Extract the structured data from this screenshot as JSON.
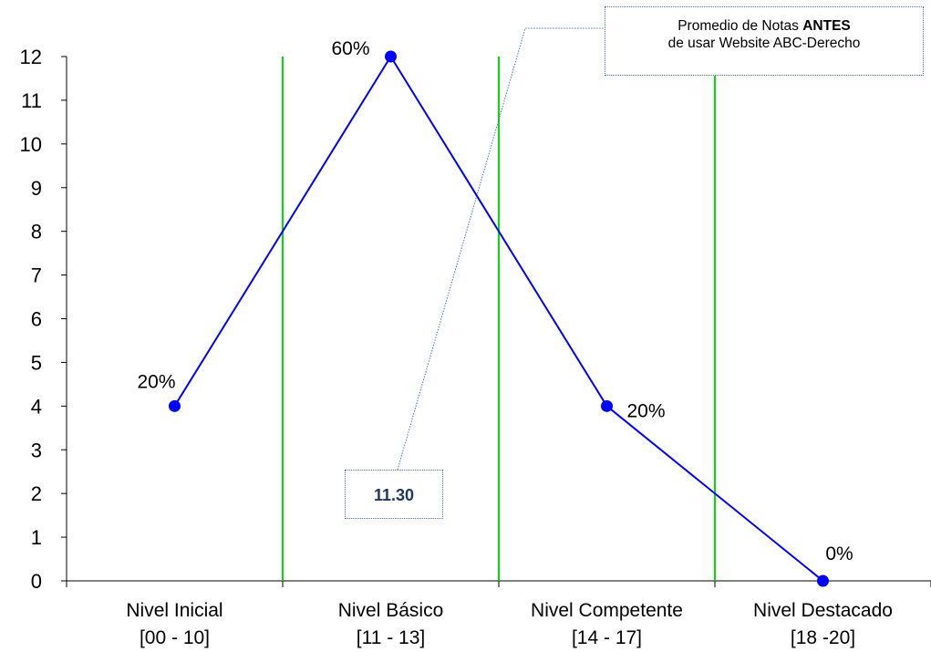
{
  "chart_data": {
    "type": "line",
    "categories": [
      [
        "Nivel Inicial",
        "[00 - 10]"
      ],
      [
        "Nivel Básico",
        "[11 - 13]"
      ],
      [
        "Nivel Competente",
        "[14 - 17]"
      ],
      [
        "Nivel Destacado",
        "[18 -20]"
      ]
    ],
    "values": [
      4,
      12,
      4,
      0
    ],
    "data_labels": [
      "20%",
      "60%",
      "20%",
      "0%"
    ],
    "ylim": [
      0,
      12
    ],
    "yticks": [
      0,
      1,
      2,
      3,
      4,
      5,
      6,
      7,
      8,
      9,
      10,
      11,
      12
    ],
    "series_color": "#0000ff",
    "divider_color": "#00e000",
    "grid": false,
    "annotations": {
      "note_line1_prefix": "Promedio de Notas ",
      "note_line1_bold": "ANTES",
      "note_line2": "de usar Website ABC-Derecho",
      "value": "11.30"
    }
  }
}
